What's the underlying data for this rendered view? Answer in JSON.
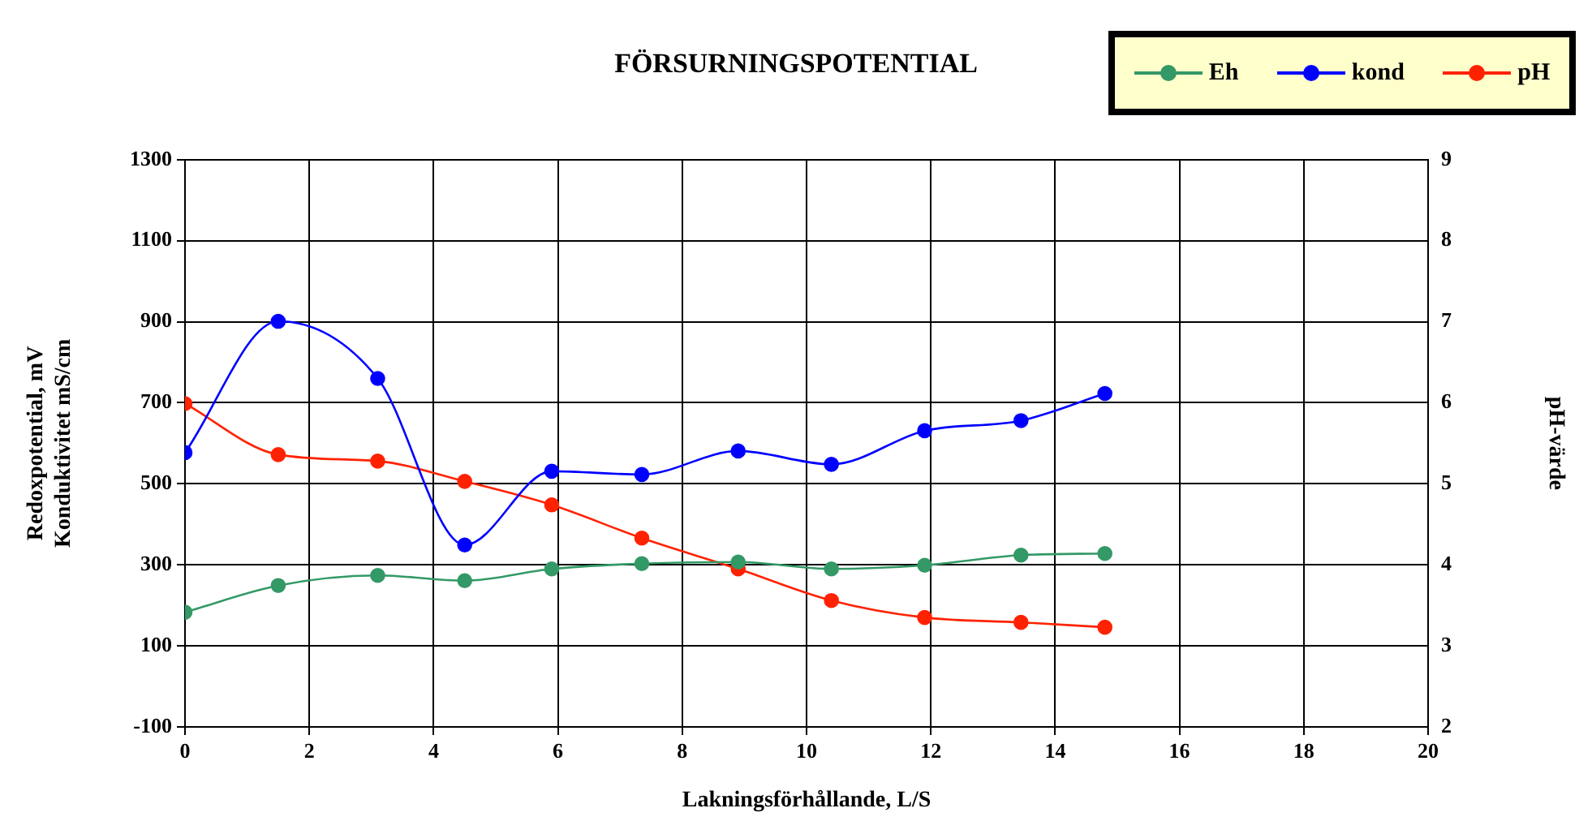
{
  "chart_data": {
    "type": "line",
    "title": "FÖRSURNINGSPOTENTIAL",
    "xlabel": "Lakningsförhållande, L/S",
    "ylabel": "Redoxpotential, mV\nKonduktivitet mS/cm",
    "y2label": "pH-värde",
    "x": [
      0,
      1.5,
      3.1,
      4.5,
      5.9,
      7.35,
      8.9,
      10.4,
      11.9,
      13.45,
      14.8
    ],
    "series": [
      {
        "name": "Eh",
        "color": "#339966",
        "values": [
          183,
          249,
          274,
          261,
          290,
          303,
          307,
          290,
          299,
          324,
          328
        ]
      },
      {
        "name": "kond",
        "color": "#0000ff",
        "values": [
          577,
          901,
          760,
          349,
          531,
          523,
          581,
          548,
          631,
          656,
          723
        ]
      },
      {
        "name": "pH",
        "color": "#ff2200",
        "axis": "y2",
        "values": [
          5.99,
          5.36,
          5.28,
          5.03,
          4.74,
          4.33,
          3.95,
          3.56,
          3.35,
          3.29,
          3.23
        ]
      }
    ],
    "xlim": [
      0,
      20
    ],
    "xticks": [
      0,
      2,
      4,
      6,
      8,
      10,
      12,
      14,
      16,
      18,
      20
    ],
    "ylim": [
      -100,
      1300
    ],
    "yticks": [
      -100,
      100,
      300,
      500,
      700,
      900,
      1100,
      1300
    ],
    "y2lim": [
      2,
      9
    ],
    "y2ticks": [
      2,
      3,
      4,
      5,
      6,
      7,
      8,
      9
    ],
    "grid": true,
    "legend": "top right",
    "marker": "circle",
    "line_style": "solid"
  }
}
